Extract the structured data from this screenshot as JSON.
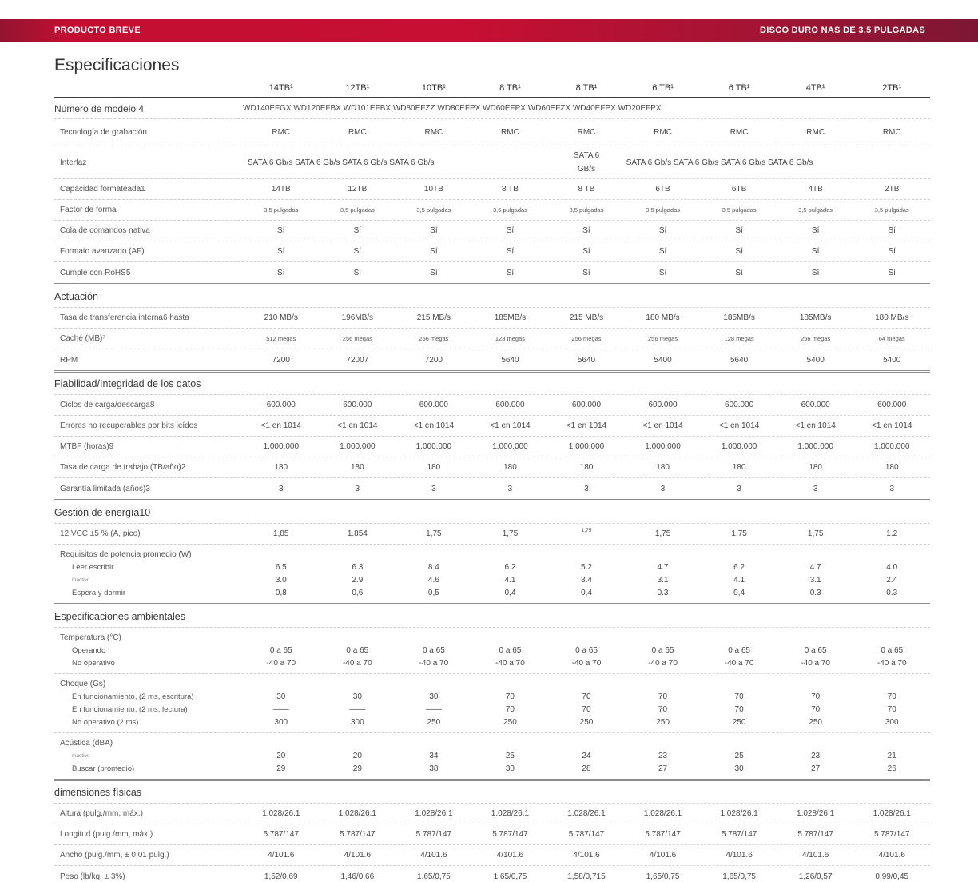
{
  "header_bar": {
    "left": "PRODUCTO BREVE",
    "right": "DISCO DURO NAS DE 3,5 PULGADAS",
    "brand_red": "#c60f33",
    "brand_dark_red": "#7c1733",
    "text_color": "#ffffff"
  },
  "page_title": "Especificaciones",
  "table": {
    "columns": [
      "14TB¹",
      "12TB¹",
      "10TB¹",
      "8 TB¹",
      "8 TB¹",
      "6 TB¹",
      "6 TB¹",
      "4TB¹",
      "2TB¹"
    ],
    "sections": [
      {
        "rows": [
          {
            "kind": "span",
            "label": "Número de modelo 4",
            "text": "WD140EFGX WD120EFBX WD101EFBX WD80EFZZ WD80EFPX WD60EFPX WD60EFZX WD40EFPX WD20EFPX"
          },
          {
            "kind": "cells",
            "h": "taller",
            "label": "Tecnología de grabación",
            "cells": [
              "RMC",
              "RMC",
              "RMC",
              "RMC",
              "RMC",
              "RMC",
              "RMC",
              "RMC",
              "RMC"
            ]
          },
          {
            "kind": "multispan",
            "label": "Interfaz",
            "left": "SATA 6 Gb/s SATA 6 Gb/s SATA 6 Gb/s SATA 6 Gb/s",
            "center_line1": "SATA 6",
            "center_line2": "GB/s",
            "right": "SATA 6 Gb/s SATA 6 Gb/s SATA 6 Gb/s SATA 6 Gb/s"
          },
          {
            "kind": "cells",
            "label": "Capacidad formateada1",
            "cells": [
              "14TB",
              "12TB",
              "10TB",
              "8 TB",
              "8 TB",
              "6TB",
              "6TB",
              "4TB",
              "2TB"
            ]
          },
          {
            "kind": "cells",
            "small": true,
            "label": "Factor de forma",
            "cells": [
              "3,5 pulgadas",
              "3,5 pulgadas",
              "3,5 pulgadas",
              "3,5 pulgadas",
              "3,5 pulgadas",
              "3,5 pulgadas",
              "3,5 pulgadas",
              "3,5 pulgadas",
              "3,5 pulgadas"
            ]
          },
          {
            "kind": "cells",
            "label": "Cola de comandos nativa",
            "cells": [
              "Sí",
              "Sí",
              "Sí",
              "Sí",
              "Sí",
              "Sí",
              "Sí",
              "Sí",
              "Sí"
            ]
          },
          {
            "kind": "cells",
            "label": "Formato avanzado (AF)",
            "cells": [
              "Sí",
              "Sí",
              "Sí",
              "Sí",
              "Sí",
              "Sí",
              "Sí",
              "Sí",
              "Sí"
            ]
          },
          {
            "kind": "cells",
            "label": "Cumple con RoHS5",
            "cells": [
              "Sí",
              "Sí",
              "Sí",
              "Sí",
              "Sí",
              "Sí",
              "Sí",
              "Sí",
              "Sí"
            ]
          }
        ]
      },
      {
        "title": "Actuación",
        "rows": [
          {
            "kind": "cells",
            "label": "Tasa de transferencia interna6 hasta",
            "cells": [
              "210 MB/s",
              "196MB/s",
              "215 MB/s",
              "185MB/s",
              "215 MB/s",
              "180 MB/s",
              "185MB/s",
              "185MB/s",
              "180 MB/s"
            ]
          },
          {
            "kind": "cells",
            "small": true,
            "label": "Caché (MB)⁷",
            "cells": [
              "512 megas",
              "256 megas",
              "256 megas",
              "128 megas",
              "256 megas",
              "256 megas",
              "128 megas",
              "256 megas",
              "64 megas"
            ]
          },
          {
            "kind": "cells",
            "label": "RPM",
            "cells": [
              "7200",
              "72007",
              "7200",
              "5640",
              "5640",
              "5400",
              "5640",
              "5400",
              "5400"
            ]
          }
        ]
      },
      {
        "title": "Fiabilidad/Integridad de los datos",
        "rows": [
          {
            "kind": "cells",
            "label": "Ciclos de carga/descarga8",
            "cells": [
              "600.000",
              "600.000",
              "600.000",
              "600.000",
              "600.000",
              "600.000",
              "600.000",
              "600.000",
              "600.000"
            ]
          },
          {
            "kind": "cells",
            "label": "Errores no recuperables por bits leídos",
            "cells": [
              "<1 en 1014",
              "<1 en 1014",
              "<1 en 1014",
              "<1 en 1014",
              "<1 en 1014",
              "<1 en 1014",
              "<1 en 1014",
              "<1 en 1014",
              "<1 en 1014"
            ]
          },
          {
            "kind": "cells",
            "label": "MTBF (horas)9",
            "cells": [
              "1.000.000",
              "1.000.000",
              "1.000.000",
              "1.000.000",
              "1.000.000",
              "1.000.000",
              "1.000.000",
              "1.000.000",
              "1.000.000"
            ]
          },
          {
            "kind": "cells",
            "label": "Tasa de carga de trabajo (TB/año)2",
            "cells": [
              "180",
              "180",
              "180",
              "180",
              "180",
              "180",
              "180",
              "180",
              "180"
            ]
          },
          {
            "kind": "cells",
            "label": "Garantía limitada (años)3",
            "cells": [
              "3",
              "3",
              "3",
              "3",
              "3",
              "3",
              "3",
              "3",
              "3"
            ]
          }
        ]
      },
      {
        "title": "Gestión de energía10",
        "rows": [
          {
            "kind": "cells",
            "label": "12 VCC ±5 % (A, pico)",
            "sup_index": 4,
            "cells": [
              "1,85",
              "1.854",
              "1,75",
              "1,75",
              "1,75",
              "1,75",
              "1,75",
              "1,75",
              "1.2"
            ]
          },
          {
            "kind": "group",
            "label": "Requisitos de potencia promedio (W)",
            "subrows": [
              {
                "label": "Leer escribir",
                "cells": [
                  "6.5",
                  "6.3",
                  "8.4",
                  "6.2",
                  "5.2",
                  "4.7",
                  "6.2",
                  "4.7",
                  "4.0"
                ]
              },
              {
                "label": "Inactivo",
                "tiny": true,
                "cells": [
                  "3.0",
                  "2.9",
                  "4.6",
                  "4.1",
                  "3.4",
                  "3.1",
                  "4.1",
                  "3.1",
                  "2.4"
                ]
              },
              {
                "label": "Espera y dormir",
                "cells": [
                  "0,8",
                  "0,6",
                  "0,5",
                  "0,4",
                  "0,4",
                  "0.3",
                  "0,4",
                  "0.3",
                  "0.3"
                ]
              }
            ]
          }
        ]
      },
      {
        "title": "Especificaciones ambientales",
        "rows": [
          {
            "kind": "group",
            "label": "Temperatura (°C)",
            "subrows": [
              {
                "label": "Operando",
                "cells": [
                  "0 a 65",
                  "0 a 65",
                  "0 a 65",
                  "0 a 65",
                  "0 a 65",
                  "0 a 65",
                  "0 a 65",
                  "0 a 65",
                  "0 a 65"
                ]
              },
              {
                "label": "No operativo",
                "cells": [
                  "-40 a 70",
                  "-40 a 70",
                  "-40 a 70",
                  "-40 a 70",
                  "-40 a 70",
                  "-40 a 70",
                  "-40 a 70",
                  "-40 a 70",
                  "-40 a 70"
                ]
              }
            ]
          },
          {
            "kind": "group",
            "label": "Choque (Gs)",
            "subrows": [
              {
                "label": "En funcionamiento, (2 ms, escritura)",
                "cells": [
                  "30",
                  "30",
                  "30",
                  "70",
                  "70",
                  "70",
                  "70",
                  "70",
                  "70"
                ]
              },
              {
                "label": "En funcionamiento, (2 ms, lectura)",
                "cells": [
                  "——",
                  "——",
                  "——",
                  "70",
                  "70",
                  "70",
                  "70",
                  "70",
                  "70"
                ]
              },
              {
                "label": "No operativo (2 ms)",
                "cells": [
                  "300",
                  "300",
                  "250",
                  "250",
                  "250",
                  "250",
                  "250",
                  "250",
                  "300"
                ]
              }
            ]
          },
          {
            "kind": "group",
            "label": "Acústica (dBA)",
            "subrows": [
              {
                "label": "Inactivo",
                "tiny": true,
                "cells": [
                  "20",
                  "20",
                  "34",
                  "25",
                  "24",
                  "23",
                  "25",
                  "23",
                  "21"
                ]
              },
              {
                "label": "Buscar (promedio)",
                "cells": [
                  "29",
                  "29",
                  "38",
                  "30",
                  "28",
                  "27",
                  "30",
                  "27",
                  "26"
                ]
              }
            ]
          }
        ]
      },
      {
        "title": "dimensiones físicas",
        "rows": [
          {
            "kind": "cells",
            "label": "Altura (pulg./mm, máx.)",
            "cells": [
              "1.028/26.1",
              "1.028/26.1",
              "1.028/26.1",
              "1.028/26.1",
              "1.028/26.1",
              "1.028/26.1",
              "1.028/26.1",
              "1.028/26.1",
              "1.028/26.1"
            ]
          },
          {
            "kind": "cells",
            "label": "Longitud (pulg./mm, máx.)",
            "cells": [
              "5.787/147",
              "5.787/147",
              "5.787/147",
              "5.787/147",
              "5.787/147",
              "5.787/147",
              "5.787/147",
              "5.787/147",
              "5.787/147"
            ]
          },
          {
            "kind": "cells",
            "label": "Ancho (pulg./mm, ± 0,01 pulg.)",
            "cells": [
              "4/101.6",
              "4/101.6",
              "4/101.6",
              "4/101.6",
              "4/101.6",
              "4/101.6",
              "4/101.6",
              "4/101.6",
              "4/101.6"
            ]
          },
          {
            "kind": "cells",
            "label": "Peso (lb/kg, ± 3%)",
            "cells": [
              "1,52/0,69",
              "1,46/0,66",
              "1,65/0,75",
              "1,65/0,75",
              "1,58/0,715",
              "1,65/0,75",
              "1,65/0,75",
              "1,26/0,57",
              "0,99/0,45"
            ]
          }
        ]
      }
    ]
  }
}
